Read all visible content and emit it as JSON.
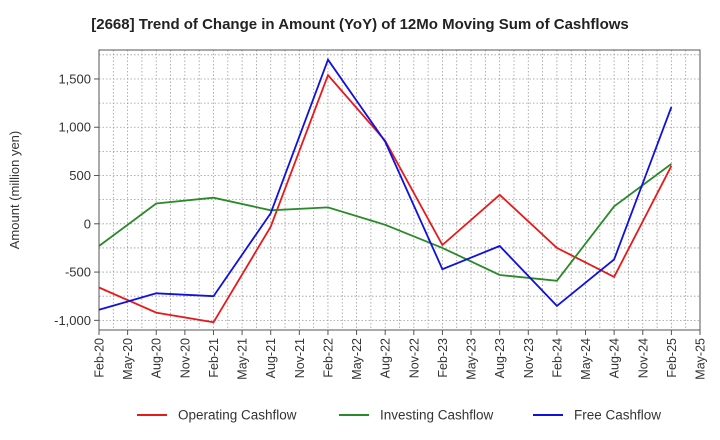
{
  "chart_data": {
    "type": "line",
    "title": "[2668]  Trend of Change in Amount (YoY) of 12Mo Moving Sum of Cashflows",
    "xlabel": "",
    "ylabel": "Amount (million yen)",
    "ylim": [
      -1100,
      1800
    ],
    "yticks": [
      -1000,
      -500,
      0,
      500,
      1000,
      1500
    ],
    "ytick_labels": [
      "-1,000",
      "-500",
      "0",
      "500",
      "1,000",
      "1,500"
    ],
    "categories": [
      "Feb-20",
      "May-20",
      "Aug-20",
      "Nov-20",
      "Feb-21",
      "May-21",
      "Aug-21",
      "Nov-21",
      "Feb-22",
      "May-22",
      "Aug-22",
      "Nov-22",
      "Feb-23",
      "May-23",
      "Aug-23",
      "Nov-23",
      "Feb-24",
      "May-24",
      "Aug-24",
      "Nov-24",
      "Feb-25",
      "May-25"
    ],
    "x_tick_labels": [
      "Feb-20",
      "May-20",
      "Aug-20",
      "Nov-20",
      "Feb-21",
      "May-21",
      "Aug-21",
      "Nov-21",
      "Feb-22",
      "May-22",
      "Aug-22",
      "Nov-22",
      "Feb-23",
      "May-23",
      "Aug-23",
      "Nov-23",
      "Feb-24",
      "May-24",
      "Aug-24",
      "Nov-24",
      "Feb-25",
      "May-25"
    ],
    "series": [
      {
        "name": "Operating Cashflow",
        "color": "#e8191b",
        "x": [
          0,
          2,
          4,
          6,
          8,
          10,
          12,
          14,
          16,
          18,
          20
        ],
        "values": [
          -660,
          -920,
          -1020,
          -30,
          1540,
          860,
          -220,
          300,
          -250,
          -550,
          600
        ]
      },
      {
        "name": "Investing Cashflow",
        "color": "#2a8a2a",
        "x": [
          0,
          2,
          4,
          6,
          8,
          10,
          12,
          14,
          16,
          18,
          20
        ],
        "values": [
          -230,
          210,
          270,
          140,
          170,
          -10,
          -250,
          -530,
          -590,
          180,
          620
        ]
      },
      {
        "name": "Free Cashflow",
        "color": "#1010e0",
        "x": [
          0,
          2,
          4,
          6,
          8,
          10,
          12,
          14,
          16,
          18,
          20
        ],
        "values": [
          -890,
          -720,
          -750,
          110,
          1700,
          850,
          -470,
          -230,
          -850,
          -370,
          1210
        ]
      }
    ],
    "grid": true,
    "legend_position": "bottom"
  }
}
